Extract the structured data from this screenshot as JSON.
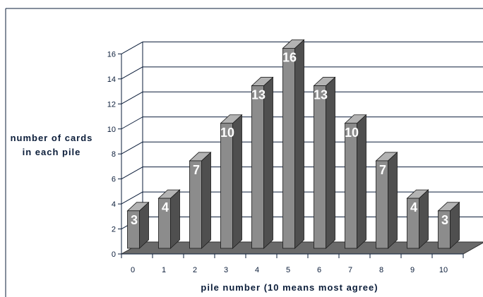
{
  "chart_data": {
    "type": "bar",
    "categories": [
      "0",
      "1",
      "2",
      "3",
      "4",
      "5",
      "6",
      "7",
      "8",
      "9",
      "10"
    ],
    "values": [
      3,
      4,
      7,
      10,
      13,
      16,
      13,
      10,
      7,
      4,
      3
    ],
    "xlabel": "pile number (10 means most agree)",
    "ylabel": "number of cards in each pile",
    "ylim": [
      0,
      16
    ],
    "yticks": [
      "0",
      "2",
      "4",
      "6",
      "8",
      "10",
      "12",
      "14",
      "16"
    ],
    "grid": true,
    "legend": "none",
    "colors": {
      "bar_front": "#8c8c8c",
      "bar_side": "#4f4f4f",
      "bar_top": "#b3b3b3",
      "floor": "#6a6a6a",
      "grid": "#0b1d3a",
      "text": "#0b1d3a",
      "label": "#ffffff"
    }
  }
}
